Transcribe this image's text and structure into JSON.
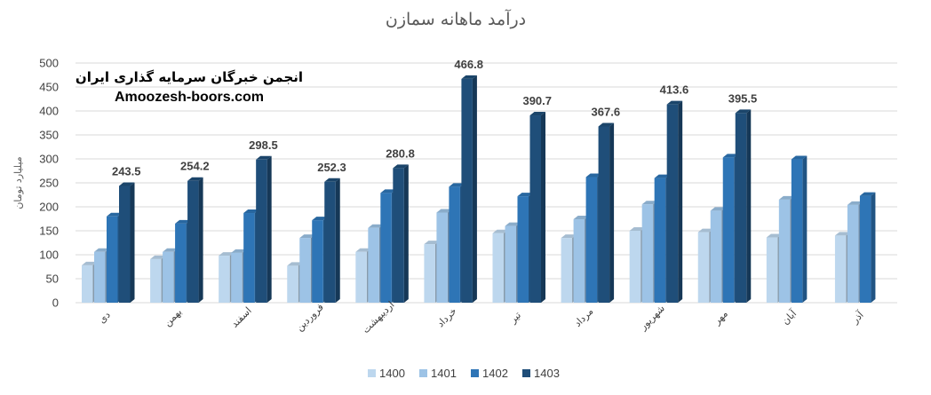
{
  "watermark": {
    "line1": "انجمن خبرگان سرمایه گذاری ایران",
    "line2": "Amoozesh-boors.com"
  },
  "chart_data": {
    "type": "bar",
    "title": "درآمد ماهانه سمازن",
    "ylabel": "میلیارد تومان",
    "xlabel": "",
    "ylim": [
      0,
      500
    ],
    "yticks": [
      0,
      50,
      100,
      150,
      200,
      250,
      300,
      350,
      400,
      450,
      500
    ],
    "grid": true,
    "legend_position": "bottom",
    "categories": [
      "دی",
      "بهمن",
      "اسفند",
      "فروردین",
      "اردیبهشت",
      "خرداد",
      "تیر",
      "مرداد",
      "شهریور",
      "مهر",
      "آبان",
      "آذر"
    ],
    "series": [
      {
        "name": "1400",
        "color": "#bdd7ee",
        "values": [
          78,
          91,
          98,
          77,
          106,
          122,
          145,
          135,
          150,
          147,
          136,
          140
        ]
      },
      {
        "name": "1401",
        "color": "#9dc3e6",
        "values": [
          106,
          106,
          104,
          135,
          156,
          188,
          160,
          174,
          205,
          192,
          215,
          204
        ]
      },
      {
        "name": "1402",
        "color": "#2e75b6",
        "values": [
          180,
          165,
          187,
          172,
          229,
          242,
          222,
          262,
          260,
          303,
          299,
          223
        ]
      },
      {
        "name": "1403",
        "color": "#1f4e79",
        "values": [
          243.5,
          254.2,
          298.5,
          252.3,
          280.8,
          466.8,
          390.7,
          367.6,
          413.6,
          395.5,
          null,
          null
        ]
      }
    ],
    "data_labels_series": "1403"
  }
}
